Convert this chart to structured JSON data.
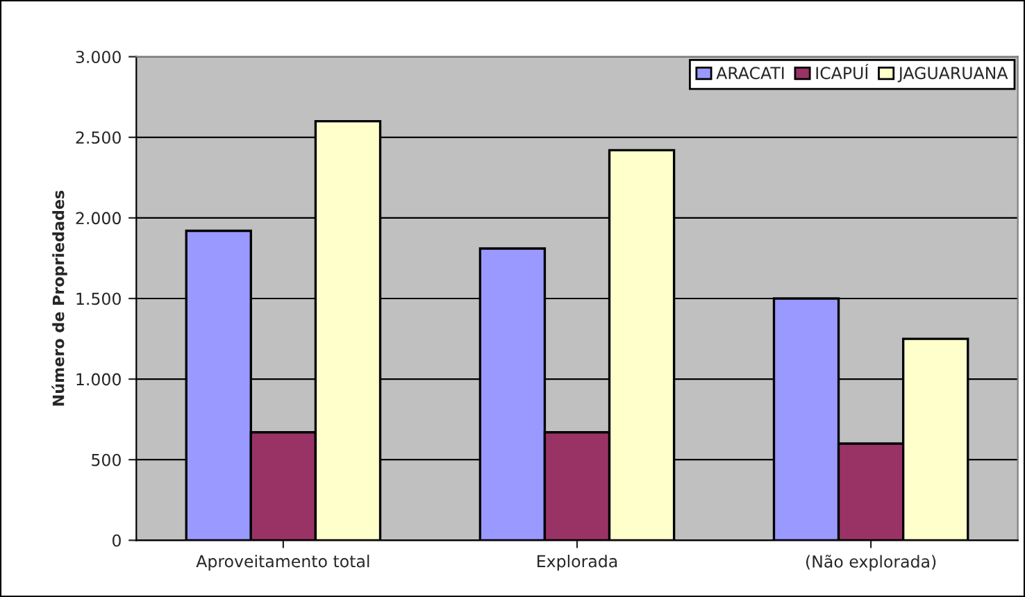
{
  "chart_data": {
    "type": "bar",
    "ylabel": "Número de Propriedades",
    "categories": [
      "Aproveitamento total",
      "Explorada",
      "(Não explorada)"
    ],
    "series": [
      {
        "name": "ARACATI",
        "color": "#9999ff",
        "values": [
          1920,
          1810,
          1500
        ]
      },
      {
        "name": "ICAPUÍ",
        "color": "#993366",
        "values": [
          670,
          670,
          600
        ]
      },
      {
        "name": "JAGUARUANA",
        "color": "#ffffcc",
        "values": [
          2600,
          2420,
          1250
        ]
      }
    ],
    "ylim": [
      0,
      3000
    ],
    "yticks": [
      {
        "value": 0,
        "label": "0"
      },
      {
        "value": 500,
        "label": "500"
      },
      {
        "value": 1000,
        "label": "1.000"
      },
      {
        "value": 1500,
        "label": "1.500"
      },
      {
        "value": 2000,
        "label": "2.000"
      },
      {
        "value": 2500,
        "label": "2.500"
      },
      {
        "value": 3000,
        "label": "3.000"
      }
    ],
    "grid": "y",
    "legend": "top right"
  }
}
